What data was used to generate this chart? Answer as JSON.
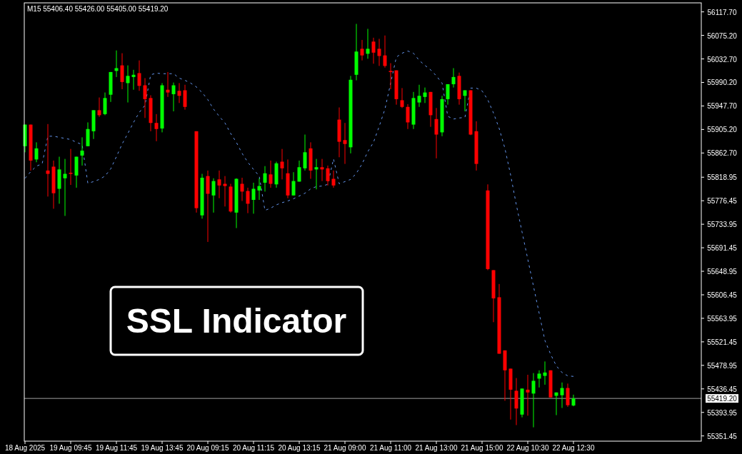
{
  "chart_data": {
    "type": "candlestick",
    "title": "SSL Indicator",
    "annotations": [
      "M15 55406.40 55426.00 55405.00 55419.20"
    ],
    "categories": [
      "18 Aug 2025",
      null,
      null,
      null,
      null,
      null,
      null,
      null,
      "19 Aug 09:45",
      null,
      null,
      null,
      null,
      null,
      null,
      null,
      "19 Aug 11:45",
      null,
      null,
      null,
      null,
      null,
      null,
      null,
      "19 Aug 13:45",
      null,
      null,
      null,
      null,
      null,
      null,
      null,
      "20 Aug 09:15",
      null,
      null,
      null,
      null,
      null,
      null,
      null,
      "20 Aug 11:15",
      null,
      null,
      null,
      null,
      null,
      null,
      null,
      "20 Aug 13:15",
      null,
      null,
      null,
      null,
      null,
      null,
      null,
      "21 Aug 09:00",
      null,
      null,
      null,
      null,
      null,
      null,
      null,
      "21 Aug 11:00",
      null,
      null,
      null,
      null,
      null,
      null,
      null,
      "21 Aug 13:00",
      null,
      null,
      null,
      null,
      null,
      null,
      null,
      "21 Aug 15:00",
      null,
      null,
      null,
      null,
      null,
      null,
      null,
      "22 Aug 10:30",
      null,
      null,
      null,
      null,
      null,
      null,
      null,
      "22 Aug 12:30"
    ],
    "ohlc": [
      [
        55875,
        55914,
        55864,
        55914
      ],
      [
        55914,
        55914,
        55831,
        55849
      ],
      [
        55851,
        55882,
        55846,
        55871
      ],
      null,
      [
        55831,
        55915,
        55784,
        55825
      ],
      [
        55838,
        55849,
        55762,
        55790
      ],
      [
        55798,
        55856,
        55771,
        55833
      ],
      [
        55817,
        55852,
        55749,
        55825
      ],
      [
        55827,
        55870,
        55805,
        55825
      ],
      [
        55822,
        55856,
        55800,
        55856
      ],
      [
        55858,
        55891,
        55840,
        55867
      ],
      [
        55875,
        55918,
        55875,
        55906
      ],
      [
        55902,
        55940,
        55888,
        55940
      ],
      [
        55940,
        55963,
        55928,
        55931
      ],
      [
        55933,
        55972,
        55931,
        55962
      ],
      [
        55968,
        56009,
        55955,
        56009
      ],
      [
        56011,
        56048,
        56000,
        56016
      ],
      [
        56021,
        56043,
        55978,
        55991
      ],
      [
        55989,
        56021,
        55954,
        56002
      ],
      [
        56000,
        56013,
        55977,
        56004
      ],
      [
        56007,
        56030,
        55975,
        55984
      ],
      [
        55985,
        55998,
        55926,
        55960
      ],
      [
        55962,
        55967,
        55902,
        55917
      ],
      [
        55917,
        55933,
        55884,
        55906
      ],
      [
        55907,
        55989,
        55900,
        55985
      ],
      [
        55977,
        56009,
        55964,
        55972
      ],
      [
        55969,
        55990,
        55938,
        55985
      ],
      [
        55975,
        55989,
        55953,
        55966
      ],
      [
        55976,
        55986,
        55941,
        55946
      ],
      null,
      [
        55902,
        55902,
        55755,
        55763
      ],
      [
        55750,
        55825,
        55744,
        55818
      ],
      [
        55821,
        55831,
        55702,
        55789
      ],
      [
        55786,
        55817,
        55755,
        55812
      ],
      [
        55815,
        55831,
        55781,
        55804
      ],
      [
        55807,
        55821,
        55766,
        55803
      ],
      [
        55802,
        55807,
        55755,
        55757
      ],
      [
        55755,
        55817,
        55727,
        55816
      ],
      [
        55807,
        55818,
        55776,
        55793
      ],
      [
        55794,
        55800,
        55754,
        55771
      ],
      [
        55778,
        55809,
        55753,
        55798
      ],
      [
        55795,
        55817,
        55778,
        55803
      ],
      [
        55809,
        55839,
        55793,
        55826
      ],
      [
        55824,
        55849,
        55800,
        55807
      ],
      [
        55806,
        55847,
        55800,
        55844
      ],
      [
        55847,
        55870,
        55815,
        55835
      ],
      [
        55826,
        55851,
        55781,
        55786
      ],
      [
        55786,
        55828,
        55786,
        55812
      ],
      [
        55811,
        55849,
        55811,
        55837
      ],
      [
        55835,
        55896,
        55831,
        55864
      ],
      [
        55871,
        55882,
        55816,
        55831
      ],
      [
        55833,
        55852,
        55797,
        55837
      ],
      [
        55837,
        55852,
        55812,
        55833
      ],
      [
        55835,
        55840,
        55804,
        55812
      ],
      [
        55816,
        55831,
        55800,
        55804
      ],
      [
        55923,
        55945,
        55855,
        55883
      ],
      [
        55886,
        55917,
        55843,
        55879
      ],
      [
        55873,
        56002,
        55862,
        55995
      ],
      [
        56004,
        56096,
        55994,
        56046
      ],
      [
        56051,
        56067,
        56030,
        56039
      ],
      [
        56042,
        56087,
        56033,
        56051
      ],
      [
        56064,
        56071,
        56024,
        56044
      ],
      [
        56051,
        56069,
        56020,
        56038
      ],
      [
        56039,
        56075,
        56017,
        56020
      ],
      [
        56011,
        56025,
        55978,
        56009
      ],
      [
        56012,
        56012,
        55950,
        55960
      ],
      [
        55958,
        55980,
        55944,
        55946
      ],
      [
        55946,
        55951,
        55906,
        55918
      ],
      [
        55914,
        55973,
        55906,
        55962
      ],
      [
        55954,
        55986,
        55946,
        55966
      ],
      [
        55964,
        55981,
        55953,
        55972
      ],
      [
        55973,
        55973,
        55910,
        55931
      ],
      [
        55924,
        55944,
        55853,
        55896
      ],
      [
        55900,
        55966,
        55893,
        55960
      ],
      [
        55960,
        55987,
        55950,
        55987
      ],
      [
        55987,
        56016,
        55981,
        56000
      ],
      [
        56002,
        56008,
        55950,
        55960
      ],
      [
        55966,
        55976,
        55938,
        55976
      ],
      [
        55976,
        55976,
        55895,
        55896
      ],
      [
        55902,
        55920,
        55831,
        55843
      ],
      null,
      [
        55795,
        55806,
        55651,
        55653
      ],
      [
        55651,
        55651,
        55557,
        55600
      ],
      [
        55602,
        55626,
        55500,
        55500
      ],
      [
        55506,
        55506,
        55415,
        55470
      ],
      [
        55473,
        55473,
        55381,
        55435
      ],
      [
        55433,
        55456,
        55371,
        55401
      ],
      [
        55390,
        55437,
        55385,
        55437
      ],
      [
        55435,
        55462,
        55388,
        55430
      ],
      [
        55428,
        55465,
        55367,
        55451
      ],
      [
        55455,
        55470,
        55439,
        55464
      ],
      [
        55460,
        55486,
        55444,
        55466
      ],
      [
        55470,
        55470,
        55421,
        55421
      ],
      [
        55424,
        55430,
        55389,
        55430
      ],
      [
        55425,
        55448,
        55402,
        55438
      ],
      [
        55438,
        55446,
        55404,
        55407
      ],
      [
        55406.4,
        55426,
        55405,
        55419.2
      ]
    ],
    "colors": [
      "#00ff00",
      "#ff0000",
      "#00ff00",
      null,
      "#ff0000",
      "#ff0000",
      "#00ff00",
      "#00ff00",
      "#ff0000",
      "#00ff00",
      "#00ff00",
      "#00ff00",
      "#00ff00",
      "#ff0000",
      "#00ff00",
      "#00ff00",
      "#00ff00",
      "#ff0000",
      "#00ff00",
      "#00ff00",
      "#ff0000",
      "#ff0000",
      "#ff0000",
      "#ff0000",
      "#00ff00",
      "#ff0000",
      "#00ff00",
      "#ff0000",
      "#ff0000",
      null,
      "#ff0000",
      "#00ff00",
      "#ff0000",
      "#00ff00",
      "#ff0000",
      "#ff0000",
      "#ff0000",
      "#00ff00",
      "#ff0000",
      "#ff0000",
      "#00ff00",
      "#00ff00",
      "#00ff00",
      "#ff0000",
      "#00ff00",
      "#ff0000",
      "#ff0000",
      "#00ff00",
      "#00ff00",
      "#00ff00",
      "#ff0000",
      "#00ff00",
      "#ff0000",
      "#ff0000",
      "#ff0000",
      "#ff0000",
      "#ff0000",
      "#00ff00",
      "#00ff00",
      "#ff0000",
      "#00ff00",
      "#ff0000",
      "#ff0000",
      "#ff0000",
      "#ff0000",
      "#ff0000",
      "#ff0000",
      "#ff0000",
      "#00ff00",
      "#00ff00",
      "#00ff00",
      "#ff0000",
      "#ff0000",
      "#00ff00",
      "#00ff00",
      "#00ff00",
      "#ff0000",
      "#00ff00",
      "#ff0000",
      "#ff0000",
      null,
      "#ff0000",
      "#ff0000",
      "#ff0000",
      "#ff0000",
      "#ff0000",
      "#ff0000",
      "#00ff00",
      "#ff0000",
      "#00ff00",
      "#00ff00",
      "#00ff00",
      "#ff0000",
      "#00ff00",
      "#00ff00",
      "#ff0000",
      "#00ff00"
    ],
    "series": [
      {
        "type": "line",
        "color": "#6495ed",
        "line_style": "dashed",
        "values": [
          55817,
          55829,
          55839,
          55843,
          55893,
          55893,
          55891,
          55889,
          55887,
          55882,
          55878,
          55808,
          55811,
          55815,
          55821,
          55834,
          55856,
          55879,
          55898,
          55918,
          55936,
          55949,
          56004,
          56007,
          56006,
          56006,
          56006,
          55998,
          55994,
          55989,
          55982,
          55972,
          55959,
          55942,
          55929,
          55917,
          55898,
          55882,
          55862,
          55846,
          55833,
          55821,
          55759,
          55763,
          55769,
          55773,
          55776,
          55780,
          55785,
          55790,
          55798,
          55802,
          55803,
          55806,
          55852,
          55807,
          55811,
          55815,
          55826,
          55843,
          55865,
          55882,
          55911,
          55942,
          55989,
          56036,
          56043,
          56047,
          56043,
          56030,
          56021,
          56013,
          56002,
          55989,
          55929,
          55924,
          55926,
          55927,
          55980,
          55980,
          55975,
          55959,
          55935,
          55907,
          55871,
          55823,
          55769,
          55720,
          55671,
          55622,
          55573,
          55524,
          55499,
          55478,
          55466,
          55460,
          55459
        ]
      }
    ],
    "ylim": [
      55342,
      56134
    ],
    "yticks": [
      {
        "value": 56117.7,
        "label": "56117.70"
      },
      {
        "value": 56075.2,
        "label": "56075.20"
      },
      {
        "value": 56032.7,
        "label": "56032.70"
      },
      {
        "value": 55990.2,
        "label": "55990.20"
      },
      {
        "value": 55947.7,
        "label": "55947.70"
      },
      {
        "value": 55905.2,
        "label": "55905.20"
      },
      {
        "value": 55862.7,
        "label": "55862.70"
      },
      {
        "value": 55818.95,
        "label": "55818.95"
      },
      {
        "value": 55776.45,
        "label": "55776.45"
      },
      {
        "value": 55733.95,
        "label": "55733.95"
      },
      {
        "value": 55691.45,
        "label": "55691.45"
      },
      {
        "value": 55648.95,
        "label": "55648.95"
      },
      {
        "value": 55606.45,
        "label": "55606.45"
      },
      {
        "value": 55563.95,
        "label": "55563.95"
      },
      {
        "value": 55521.45,
        "label": "55521.45"
      },
      {
        "value": 55478.95,
        "label": "55478.95"
      },
      {
        "value": 55436.45,
        "label": "55436.45"
      },
      {
        "value": 55393.95,
        "label": "55393.95"
      },
      {
        "value": 55351.45,
        "label": "55351.45"
      }
    ],
    "ref_lines": [
      {
        "axis": "y",
        "value": 55419.2,
        "label": "55419.20",
        "color": "#a0a0a0"
      }
    ]
  }
}
